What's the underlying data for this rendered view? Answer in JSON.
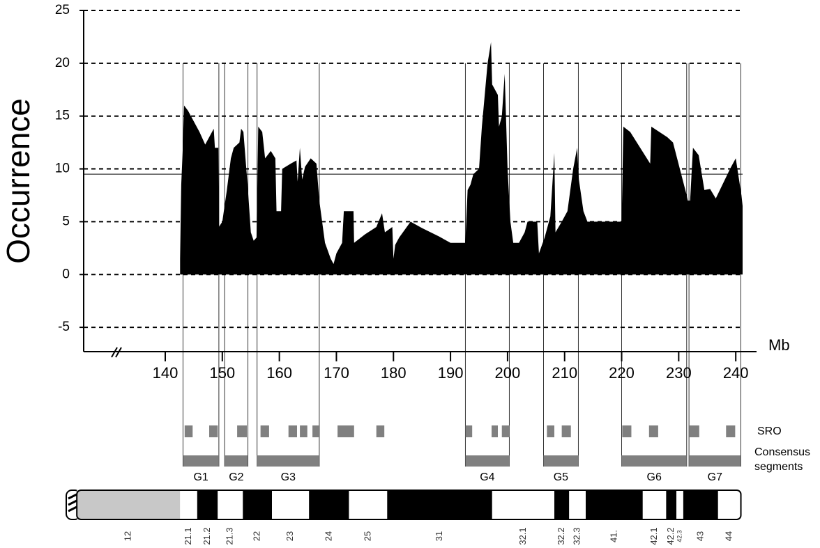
{
  "chart_data": {
    "type": "area",
    "ylabel": "Occurrence",
    "xlabel": "Mb",
    "xlim": [
      125.7,
      241.2
    ],
    "ylim": [
      -7.3,
      25
    ],
    "xticks": [
      140,
      150,
      160,
      170,
      180,
      190,
      200,
      210,
      220,
      230,
      240
    ],
    "yticks": [
      25,
      20,
      15,
      10,
      5,
      0,
      -5
    ],
    "grid": true,
    "color": "#000000",
    "threshold": 9.5,
    "x": [
      142.6,
      142.8,
      143.1,
      143.3,
      144,
      146,
      147,
      148.5,
      148.7,
      149.3,
      149.4,
      150,
      150.8,
      151.5,
      152,
      153,
      153.3,
      153.7,
      154.5,
      155,
      155.5,
      156,
      156.3,
      157,
      157.5,
      158.5,
      159.3,
      159.5,
      160.3,
      160.5,
      162,
      163,
      163.2,
      163.6,
      164,
      164.5,
      165.5,
      166.5,
      167,
      168,
      169,
      169.5,
      170,
      171,
      171.3,
      173,
      173.1,
      175,
      177,
      178,
      178.5,
      179.8,
      180,
      180.3,
      181,
      183,
      185,
      188,
      190,
      192.6,
      193,
      193.5,
      194,
      195,
      195.5,
      196.5,
      197.1,
      197.3,
      198.3,
      198.5,
      199,
      199.5,
      200,
      200.5,
      201,
      202,
      203,
      203.5,
      205.2,
      205.5,
      206.5,
      207.5,
      208.2,
      208.4,
      209.5,
      210.5,
      211.5,
      212.2,
      212.5,
      213.3,
      214,
      220,
      220.3,
      221.5,
      225,
      225.2,
      228,
      229,
      231.4,
      231.6,
      232,
      232.5,
      233.5,
      234.5,
      235.5,
      236.5,
      239,
      240,
      241,
      241.2
    ],
    "values": [
      1.5,
      8.5,
      12.3,
      16,
      15.5,
      13.5,
      12.3,
      13.8,
      12,
      12,
      4.5,
      5,
      8,
      11,
      12,
      12.5,
      13.8,
      13.5,
      8,
      4,
      3.2,
      3.5,
      14,
      13.5,
      11,
      11.7,
      11,
      6,
      6,
      10,
      10.5,
      10.8,
      8.8,
      12,
      9,
      10.2,
      11,
      10.5,
      7,
      3,
      1.5,
      1,
      2,
      3,
      6,
      6,
      3,
      3.8,
      4.5,
      5.8,
      4,
      4.5,
      1.5,
      2.8,
      3.5,
      5,
      4.4,
      3.6,
      3,
      3,
      8,
      8.5,
      9.5,
      10,
      14,
      20,
      22,
      18,
      17,
      14,
      15,
      19,
      10,
      5,
      3,
      3,
      4,
      5,
      5,
      2,
      3.5,
      5.5,
      11.5,
      4,
      5,
      6,
      10,
      12,
      9,
      6,
      5,
      5,
      14,
      13.5,
      10.5,
      14,
      13,
      12.5,
      7.5,
      7,
      7,
      12,
      11.3,
      8,
      8.1,
      7.2,
      10,
      11,
      7.5,
      6.5
    ],
    "regions": [
      {
        "name": "G1",
        "start": 143.1,
        "end": 149.4
      },
      {
        "name": "G2",
        "start": 150.4,
        "end": 154.5
      },
      {
        "name": "G3",
        "start": 156.1,
        "end": 167.0
      },
      {
        "name": "G4",
        "start": 192.6,
        "end": 200.3
      },
      {
        "name": "G5",
        "start": 206.3,
        "end": 212.4
      },
      {
        "name": "G6",
        "start": 220.0,
        "end": 231.4
      },
      {
        "name": "G7",
        "start": 231.8,
        "end": 240.9
      }
    ],
    "sro_label": "SRO",
    "consensus_label": [
      "Consensus",
      "segments"
    ],
    "sro_color": "#808080",
    "sro": [
      [
        143.4,
        144.8
      ],
      [
        147.7,
        149.2
      ],
      [
        152.6,
        154.3
      ],
      [
        156.7,
        158.2
      ],
      [
        161.6,
        163.1
      ],
      [
        163.6,
        164.9
      ],
      [
        165.8,
        167.1
      ],
      [
        170.2,
        173.1
      ],
      [
        177.0,
        178.4
      ],
      [
        192.6,
        193.8
      ],
      [
        197.2,
        198.3
      ],
      [
        199.0,
        200.3
      ],
      [
        206.9,
        208.2
      ],
      [
        209.5,
        211.1
      ],
      [
        220.1,
        221.7
      ],
      [
        224.8,
        226.4
      ],
      [
        231.9,
        233.6
      ],
      [
        238.3,
        239.9
      ]
    ],
    "bands": [
      {
        "label": "12",
        "start": 124.5,
        "end": 142.6,
        "color": "#c8c8c8"
      },
      {
        "label": "21.1",
        "start": 142.6,
        "end": 145.6,
        "color": "#ffffff"
      },
      {
        "label": "21.2",
        "start": 145.6,
        "end": 149.2,
        "color": "#000000"
      },
      {
        "label": "21.3",
        "start": 149.2,
        "end": 153.6,
        "color": "#ffffff"
      },
      {
        "label": "22",
        "start": 153.6,
        "end": 158.7,
        "color": "#000000"
      },
      {
        "label": "23",
        "start": 158.7,
        "end": 165.2,
        "color": "#ffffff"
      },
      {
        "label": "24",
        "start": 165.2,
        "end": 172.2,
        "color": "#000000"
      },
      {
        "label": "25",
        "start": 172.2,
        "end": 178.9,
        "color": "#ffffff"
      },
      {
        "label": "31",
        "start": 178.9,
        "end": 197.3,
        "color": "#000000"
      },
      {
        "label": "32.1",
        "start": 197.3,
        "end": 208.2,
        "color": "#ffffff"
      },
      {
        "label": "32.2",
        "start": 208.2,
        "end": 210.8,
        "color": "#000000"
      },
      {
        "label": "32.3",
        "start": 210.8,
        "end": 213.7,
        "color": "#ffffff"
      },
      {
        "label": "41.",
        "start": 213.7,
        "end": 223.7,
        "color": "#000000"
      },
      {
        "label": "42.1",
        "start": 223.7,
        "end": 227.8,
        "color": "#ffffff"
      },
      {
        "label": "42.2",
        "start": 227.8,
        "end": 229.6,
        "color": "#000000"
      },
      {
        "label": "42.3",
        "start": 229.6,
        "end": 230.8,
        "color": "#ffffff"
      },
      {
        "label": "43",
        "start": 230.8,
        "end": 236.9,
        "color": "#000000"
      },
      {
        "label": "44",
        "start": 236.9,
        "end": 240.9,
        "color": "#ffffff"
      }
    ]
  }
}
